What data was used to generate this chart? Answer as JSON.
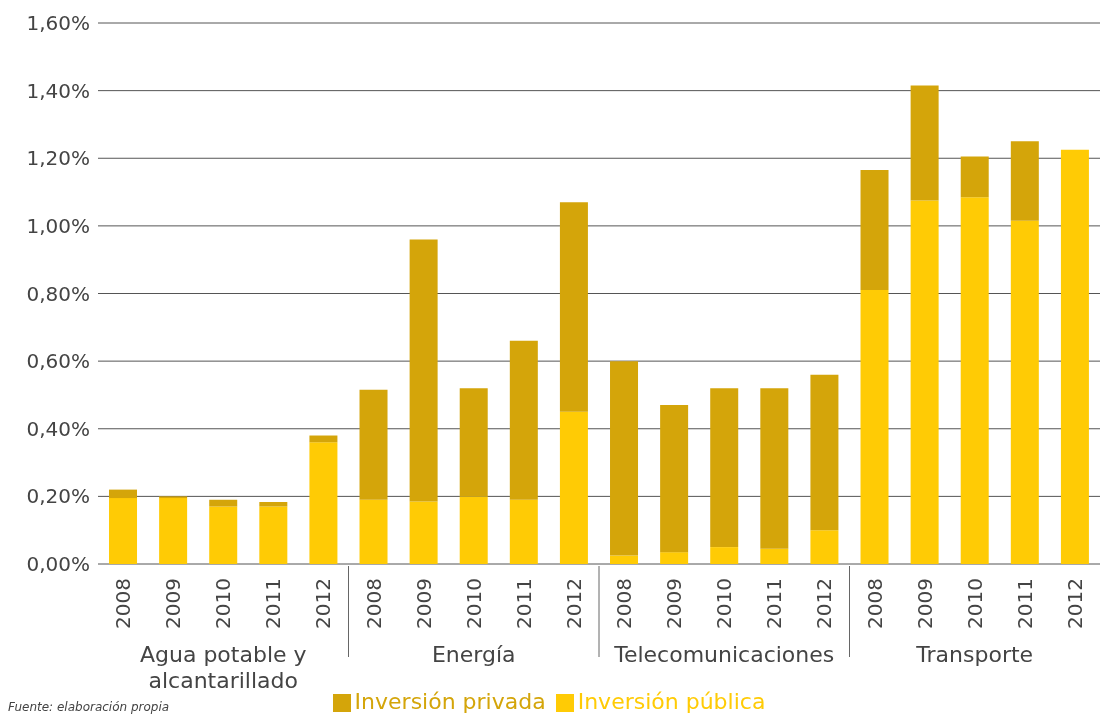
{
  "chart_data": {
    "type": "bar",
    "stacked": true,
    "categories": [
      "2008",
      "2009",
      "2010",
      "2011",
      "2012",
      "2008",
      "2009",
      "2010",
      "2011",
      "2012",
      "2008",
      "2009",
      "2010",
      "2011",
      "2012",
      "2008",
      "2009",
      "2010",
      "2011",
      "2012"
    ],
    "series": [
      {
        "name": "Inversión pública",
        "color": "#ffcb05",
        "values": [
          0.195,
          0.195,
          0.17,
          0.17,
          0.36,
          0.19,
          0.185,
          0.2,
          0.19,
          0.45,
          0.025,
          0.035,
          0.05,
          0.045,
          0.1,
          0.81,
          1.075,
          1.085,
          1.015,
          1.225
        ]
      },
      {
        "name": "Inversión privada",
        "color": "#d4a50a",
        "values": [
          0.025,
          0.005,
          0.02,
          0.013,
          0.02,
          0.325,
          0.775,
          0.32,
          0.47,
          0.62,
          0.575,
          0.435,
          0.47,
          0.475,
          0.46,
          0.355,
          0.34,
          0.12,
          0.235,
          0
        ]
      }
    ],
    "ylim": [
      0,
      1.6
    ],
    "yticks": [
      {
        "value": 0,
        "label": "0,00%"
      },
      {
        "value": 0.2,
        "label": "0,20%"
      },
      {
        "value": 0.4,
        "label": "0,40%"
      },
      {
        "value": 0.6,
        "label": "0,60%"
      },
      {
        "value": 0.8,
        "label": "0,80%"
      },
      {
        "value": 1,
        "label": "1,00%"
      },
      {
        "value": 1.2,
        "label": "1,20%"
      },
      {
        "value": 1.4,
        "label": "1,40%"
      },
      {
        "value": 1.6,
        "label": "1,60%"
      }
    ],
    "grid": "y",
    "legend": "bottom",
    "annotations": [
      "Agua potable y alcantarillado",
      "Energía",
      "Telecomunicaciones",
      "Transporte",
      "Fuente: elaboración propia"
    ]
  }
}
